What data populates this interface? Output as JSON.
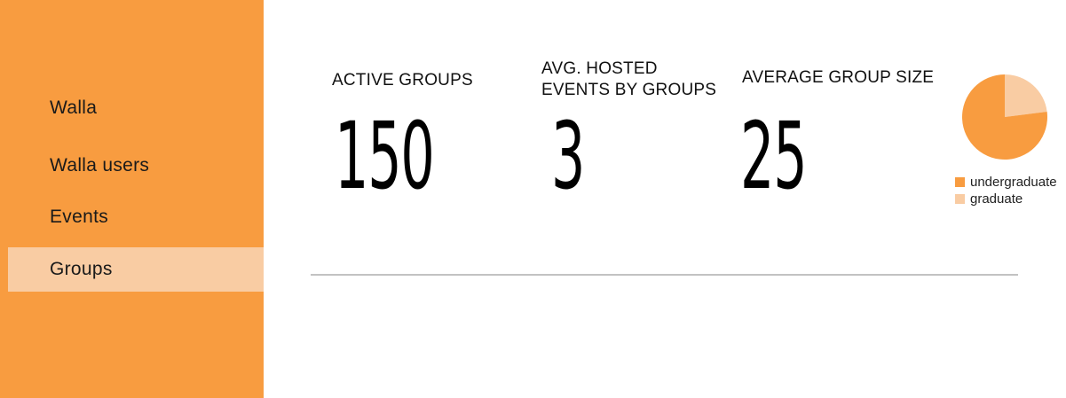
{
  "sidebar": {
    "items": [
      {
        "label": "Walla"
      },
      {
        "label": "Walla users"
      },
      {
        "label": "Events"
      },
      {
        "label": "Groups"
      }
    ],
    "active": "Groups"
  },
  "stats": [
    {
      "label_lines": [
        "ACTIVE GROUPS"
      ],
      "value": "150"
    },
    {
      "label_lines": [
        "AVG. HOSTED",
        "EVENTS BY GROUPS"
      ],
      "value": "3"
    },
    {
      "label_lines": [
        "AVERAGE GROUP SIZE"
      ],
      "value": "25"
    }
  ],
  "chart_data": {
    "type": "pie",
    "categories": [
      "undergraduate",
      "graduate"
    ],
    "values": [
      77,
      23
    ],
    "colors": [
      "#f89c40",
      "#f9cca3"
    ],
    "legend_position": "bottom"
  },
  "colors": {
    "sidebar_bg": "#f89c40",
    "active_item_bg": "#f9cca3",
    "divider": "#c2c2c2"
  }
}
